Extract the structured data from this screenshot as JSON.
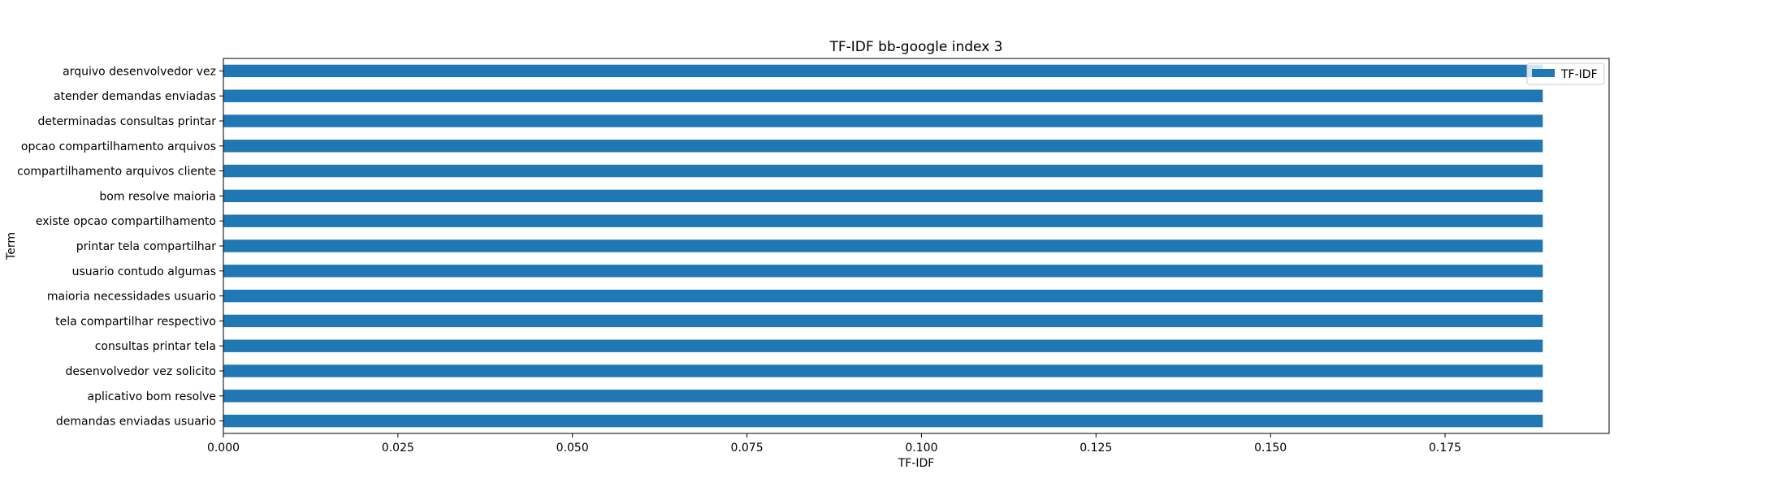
{
  "chart_data": {
    "type": "bar",
    "orientation": "horizontal",
    "title": "TF-IDF bb-google index 3",
    "xlabel": "TF-IDF",
    "ylabel": "Term",
    "xlim": [
      0,
      0.1985
    ],
    "xticks": [
      0.0,
      0.025,
      0.05,
      0.075,
      0.1,
      0.125,
      0.15,
      0.175
    ],
    "xtick_labels": [
      "0.000",
      "0.025",
      "0.050",
      "0.075",
      "0.100",
      "0.125",
      "0.150",
      "0.175"
    ],
    "categories": [
      "arquivo desenvolvedor vez",
      "atender demandas enviadas",
      "determinadas consultas printar",
      "opcao compartilhamento arquivos",
      "compartilhamento arquivos cliente",
      "bom resolve maioria",
      "existe opcao compartilhamento",
      "printar tela compartilhar",
      "usuario contudo algumas",
      "maioria necessidades usuario",
      "tela compartilhar respectivo",
      "consultas printar tela",
      "desenvolvedor vez solicito",
      "aplicativo bom resolve",
      "demandas enviadas usuario"
    ],
    "series": [
      {
        "name": "TF-IDF",
        "color": "#1f77b4",
        "values": [
          0.189,
          0.189,
          0.189,
          0.189,
          0.189,
          0.189,
          0.189,
          0.189,
          0.189,
          0.189,
          0.189,
          0.189,
          0.189,
          0.189,
          0.189
        ]
      }
    ],
    "legend": {
      "position": "top-right",
      "entries": [
        "TF-IDF"
      ]
    },
    "grid": false
  }
}
